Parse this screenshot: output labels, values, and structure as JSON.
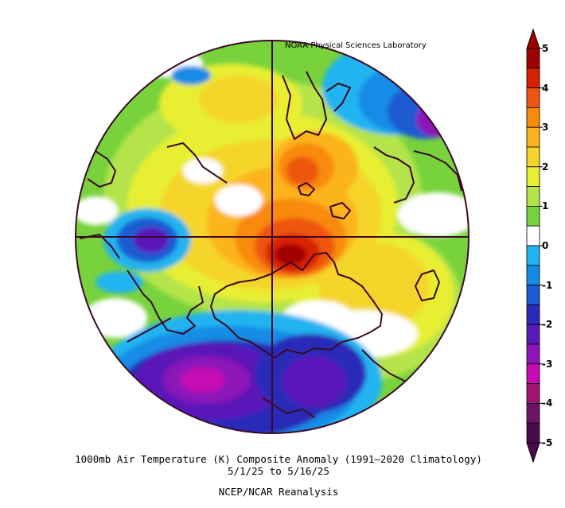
{
  "credit": "NOAA Physical Sciences Laboratory",
  "caption": {
    "line1": "1000mb Air Temperature (K) Composite Anomaly (1991–2020 Climatology)",
    "line2": "5/1/25  to 5/16/25",
    "line3": "NCEP/NCAR Reanalysis"
  },
  "colorbar": {
    "labels": [
      "5",
      "4",
      "3",
      "2",
      "1",
      "0",
      "-1",
      "-2",
      "-3",
      "-4",
      "-5"
    ],
    "colors": {
      "+4.5": "#a00000",
      "+4": "#d72000",
      "+3.5": "#ee5511",
      "+3": "#f88a0c",
      "+2.5": "#fcb41e",
      "+2": "#f5d52a",
      "+1.5": "#e8ee30",
      "+1": "#b4e44a",
      "+0.5": "#78d23c",
      "0": "#ffffff",
      "-0.5": "#20b4f0",
      "-1": "#148ce6",
      "-1.5": "#1c5ad2",
      "-2": "#2a2ab8",
      "-2.5": "#5a18b8",
      "-3": "#8c14b8",
      "-3.5": "#c80ab4",
      "-4": "#a0146e",
      "-4.5": "#6e1464",
      "-5": "#4a0a4a"
    }
  },
  "map": {
    "projection": "north-polar-stereographic",
    "coastline_color": "#3a0a28",
    "grid_color": "#3a0a28"
  }
}
